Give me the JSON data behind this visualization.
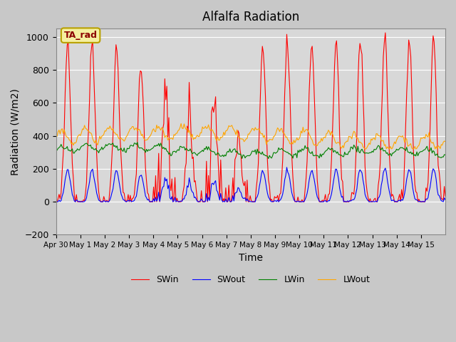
{
  "title": "Alfalfa Radiation",
  "xlabel": "Time",
  "ylabel": "Radiation (W/m2)",
  "ylim": [
    -200,
    1050
  ],
  "legend_label": "TA_rad",
  "series": [
    "SWin",
    "SWout",
    "LWin",
    "LWout"
  ],
  "colors": [
    "red",
    "blue",
    "green",
    "orange"
  ],
  "x_tick_labels": [
    "Apr 30",
    "May 1",
    "May 2",
    "May 3",
    "May 4",
    "May 5",
    "May 6",
    "May 7",
    "May 8",
    "May 9",
    "May 10",
    "May 11",
    "May 12",
    "May 13",
    "May 14",
    "May 15"
  ],
  "background_color": "#c8c8c8",
  "plot_bg_color": "#d8d8d8",
  "grid_color": "white",
  "figsize": [
    6.4,
    4.8
  ],
  "dpi": 100
}
